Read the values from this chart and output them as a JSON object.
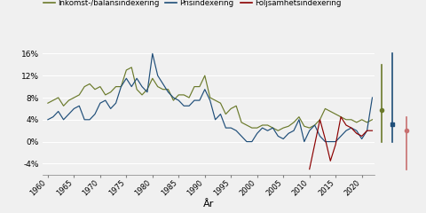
{
  "title": "",
  "xlabel": "År",
  "ylabel": "",
  "legend": [
    "Inkomst-/balansindexering",
    "Prisindexering",
    "Följsamhetsindexering"
  ],
  "colors": [
    "#6b7a2b",
    "#1f4e79",
    "#8b0000"
  ],
  "ylim": [
    -0.06,
    0.18
  ],
  "yticks": [
    -0.04,
    0.0,
    0.04,
    0.08,
    0.12,
    0.16
  ],
  "ytick_labels": [
    "-4%",
    "0%",
    "4%",
    "8%",
    "12%",
    "16%"
  ],
  "xticks": [
    1960,
    1965,
    1970,
    1975,
    1980,
    1985,
    1990,
    1995,
    2000,
    2005,
    2010,
    2015,
    2020
  ],
  "inkomst": {
    "years": [
      1960,
      1961,
      1962,
      1963,
      1964,
      1965,
      1966,
      1967,
      1968,
      1969,
      1970,
      1971,
      1972,
      1973,
      1974,
      1975,
      1976,
      1977,
      1978,
      1979,
      1980,
      1981,
      1982,
      1983,
      1984,
      1985,
      1986,
      1987,
      1988,
      1989,
      1990,
      1991,
      1992,
      1993,
      1994,
      1995,
      1996,
      1997,
      1998,
      1999,
      2000,
      2001,
      2002,
      2003,
      2004,
      2005,
      2006,
      2007,
      2008,
      2009,
      2010,
      2011,
      2012,
      2013,
      2014,
      2015,
      2016,
      2017,
      2018,
      2019,
      2020,
      2021,
      2022
    ],
    "values": [
      0.07,
      0.075,
      0.08,
      0.065,
      0.075,
      0.08,
      0.085,
      0.1,
      0.105,
      0.095,
      0.1,
      0.085,
      0.09,
      0.1,
      0.1,
      0.13,
      0.135,
      0.095,
      0.085,
      0.095,
      0.115,
      0.1,
      0.095,
      0.095,
      0.075,
      0.085,
      0.085,
      0.08,
      0.1,
      0.1,
      0.12,
      0.08,
      0.075,
      0.07,
      0.05,
      0.06,
      0.065,
      0.035,
      0.03,
      0.025,
      0.025,
      0.03,
      0.03,
      0.025,
      0.02,
      0.025,
      0.028,
      0.035,
      0.045,
      0.028,
      0.025,
      0.03,
      0.04,
      0.06,
      0.055,
      0.05,
      0.045,
      0.04,
      0.04,
      0.035,
      0.04,
      0.035,
      0.04
    ]
  },
  "pris": {
    "years": [
      1960,
      1961,
      1962,
      1963,
      1964,
      1965,
      1966,
      1967,
      1968,
      1969,
      1970,
      1971,
      1972,
      1973,
      1974,
      1975,
      1976,
      1977,
      1978,
      1979,
      1980,
      1981,
      1982,
      1983,
      1984,
      1985,
      1986,
      1987,
      1988,
      1989,
      1990,
      1991,
      1992,
      1993,
      1994,
      1995,
      1996,
      1997,
      1998,
      1999,
      2000,
      2001,
      2002,
      2003,
      2004,
      2005,
      2006,
      2007,
      2008,
      2009,
      2010,
      2011,
      2012,
      2013,
      2014,
      2015,
      2016,
      2017,
      2018,
      2019,
      2020,
      2021,
      2022
    ],
    "values": [
      0.04,
      0.045,
      0.055,
      0.04,
      0.05,
      0.06,
      0.065,
      0.04,
      0.04,
      0.05,
      0.07,
      0.075,
      0.06,
      0.07,
      0.1,
      0.115,
      0.1,
      0.115,
      0.1,
      0.09,
      0.16,
      0.12,
      0.105,
      0.09,
      0.08,
      0.075,
      0.065,
      0.065,
      0.075,
      0.075,
      0.095,
      0.075,
      0.04,
      0.05,
      0.025,
      0.025,
      0.02,
      0.01,
      0.0,
      0.0,
      0.015,
      0.025,
      0.02,
      0.025,
      0.01,
      0.005,
      0.015,
      0.02,
      0.04,
      0.0,
      0.02,
      0.03,
      0.01,
      0.0,
      0.0,
      0.0,
      0.01,
      0.02,
      0.025,
      0.02,
      0.005,
      0.02,
      0.08
    ]
  },
  "foljsamhet": {
    "years": [
      2010,
      2011,
      2012,
      2013,
      2014,
      2015,
      2016,
      2017,
      2018,
      2019,
      2020,
      2021,
      2022
    ],
    "values": [
      -0.05,
      -0.005,
      0.04,
      0.005,
      -0.035,
      -0.005,
      0.045,
      0.03,
      0.025,
      0.015,
      0.01,
      0.02,
      0.02
    ]
  },
  "right_bars": {
    "inkomst_range": [
      0.0,
      0.14
    ],
    "inkomst_dot": 0.058,
    "pris_range": [
      0.0,
      0.16
    ],
    "pris_dot": 0.032,
    "foljsamhet_range": [
      -0.05,
      0.045
    ],
    "foljsamhet_dot": 0.02
  },
  "background_color": "#f0f0f0"
}
